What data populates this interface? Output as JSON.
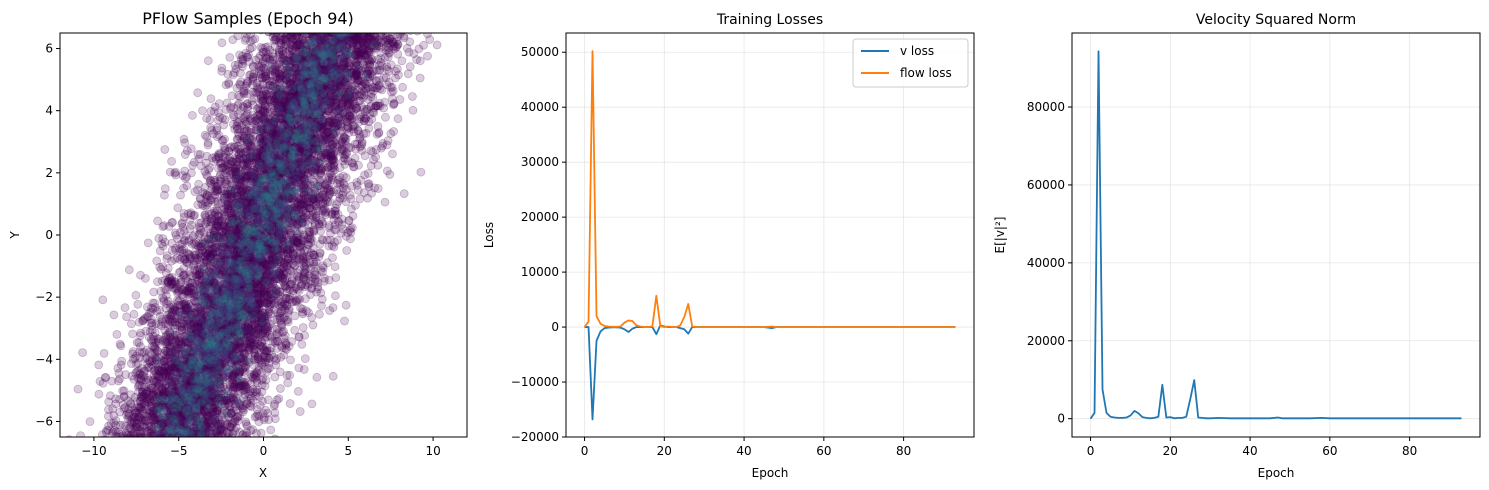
{
  "chart_data": [
    {
      "type": "scatter",
      "title": "PFlow Samples (Epoch 94)",
      "xlabel": "X",
      "ylabel": "Y",
      "xlim": [
        -12,
        12
      ],
      "ylim": [
        -6.5,
        6.5
      ],
      "xticks": [
        -10,
        -5,
        0,
        5,
        10
      ],
      "yticks": [
        -6,
        -4,
        -2,
        0,
        2,
        4,
        6
      ],
      "xtick_labels": [
        "−10",
        "−5",
        "0",
        "5",
        "10"
      ],
      "ytick_labels": [
        "−6",
        "−4",
        "−2",
        "0",
        "2",
        "4",
        "6"
      ],
      "grid": false,
      "colors": {
        "outer": "#440154",
        "mid": "#3b528b",
        "core": "#21918c"
      },
      "distribution": {
        "description_values": {
          "slope_x_per_y": 0.72,
          "center_x_at_y0": -0.5,
          "spread_x": 2.2,
          "n_points": 9000
        }
      }
    },
    {
      "type": "line",
      "title": "Training Losses",
      "xlabel": "Epoch",
      "ylabel": "Loss",
      "xlim": [
        -4.65,
        97.65
      ],
      "ylim": [
        -20000,
        53500
      ],
      "xticks": [
        0,
        20,
        40,
        60,
        80
      ],
      "yticks": [
        -20000,
        -10000,
        0,
        10000,
        20000,
        30000,
        40000,
        50000
      ],
      "xtick_labels": [
        "0",
        "20",
        "40",
        "60",
        "80"
      ],
      "ytick_labels": [
        "−20000",
        "−10000",
        "0",
        "10000",
        "20000",
        "30000",
        "40000",
        "50000"
      ],
      "grid": true,
      "legend": {
        "placement": "top-right",
        "entries": [
          "v loss",
          "flow loss"
        ]
      },
      "series": [
        {
          "name": "v loss",
          "color": "#1f77b4",
          "x": [
            0,
            1,
            2,
            3,
            4,
            5,
            6,
            7,
            8,
            9,
            10,
            11,
            12,
            13,
            14,
            15,
            16,
            17,
            18,
            19,
            20,
            21,
            22,
            23,
            24,
            25,
            26,
            27,
            28,
            29,
            30,
            35,
            40,
            45,
            47,
            48,
            50,
            55,
            60,
            65,
            70,
            75,
            80,
            85,
            90,
            93
          ],
          "y": [
            0,
            0,
            -16800,
            -2500,
            -800,
            -200,
            -100,
            -50,
            -50,
            -100,
            -400,
            -900,
            -300,
            0,
            0,
            0,
            0,
            0,
            -1300,
            300,
            100,
            0,
            0,
            0,
            -200,
            -400,
            -1200,
            0,
            0,
            0,
            0,
            0,
            0,
            0,
            -200,
            0,
            0,
            0,
            0,
            0,
            0,
            0,
            0,
            0,
            0,
            0
          ]
        },
        {
          "name": "flow loss",
          "color": "#ff7f0e",
          "x": [
            0,
            1,
            2,
            3,
            4,
            5,
            6,
            7,
            8,
            9,
            10,
            11,
            12,
            13,
            14,
            15,
            16,
            17,
            18,
            19,
            20,
            21,
            22,
            23,
            24,
            25,
            26,
            27,
            28,
            29,
            30,
            35,
            40,
            45,
            47,
            48,
            50,
            55,
            60,
            65,
            70,
            75,
            80,
            85,
            90,
            93
          ],
          "y": [
            0,
            1000,
            50200,
            2000,
            600,
            200,
            100,
            50,
            50,
            100,
            800,
            1200,
            1100,
            300,
            100,
            0,
            0,
            100,
            5700,
            200,
            0,
            100,
            0,
            0,
            300,
            1800,
            4200,
            100,
            0,
            0,
            0,
            0,
            0,
            0,
            100,
            0,
            0,
            0,
            0,
            0,
            0,
            0,
            0,
            0,
            0,
            0
          ]
        }
      ]
    },
    {
      "type": "line",
      "title": "Velocity Squared Norm",
      "xlabel": "Epoch",
      "ylabel": "E[|v|²]",
      "xlim": [
        -4.65,
        97.65
      ],
      "ylim": [
        -4700,
        99000
      ],
      "xticks": [
        0,
        20,
        40,
        60,
        80
      ],
      "yticks": [
        0,
        20000,
        40000,
        60000,
        80000
      ],
      "xtick_labels": [
        "0",
        "20",
        "40",
        "60",
        "80"
      ],
      "ytick_labels": [
        "0",
        "20000",
        "40000",
        "60000",
        "80000"
      ],
      "grid": true,
      "series": [
        {
          "color": "#1f77b4",
          "x": [
            0,
            1,
            2,
            3,
            4,
            5,
            6,
            7,
            8,
            9,
            10,
            11,
            12,
            13,
            14,
            15,
            16,
            17,
            18,
            19,
            20,
            21,
            22,
            23,
            24,
            25,
            26,
            27,
            28,
            29,
            30,
            32,
            35,
            40,
            45,
            47,
            48,
            50,
            55,
            58,
            60,
            65,
            70,
            75,
            80,
            85,
            90,
            93
          ],
          "y": [
            0,
            1500,
            94300,
            7500,
            1500,
            500,
            300,
            200,
            200,
            300,
            800,
            2000,
            1400,
            400,
            200,
            100,
            200,
            500,
            8700,
            300,
            400,
            100,
            200,
            200,
            500,
            5000,
            9900,
            300,
            200,
            100,
            100,
            200,
            100,
            100,
            100,
            300,
            100,
            100,
            100,
            200,
            100,
            100,
            100,
            100,
            100,
            100,
            100,
            100
          ]
        }
      ]
    }
  ]
}
